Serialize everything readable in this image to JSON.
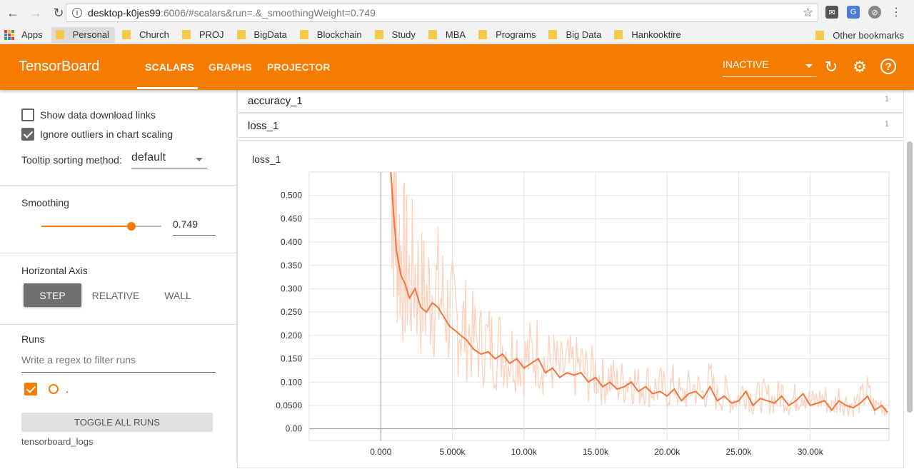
{
  "browser": {
    "url_host": "desktop-k0jes99",
    "url_rest": ":6006/#scalars&run=.&_smoothingWeight=0.749",
    "bookmarks": [
      "Apps",
      "Personal",
      "Church",
      "PROJ",
      "BigData",
      "Blockchain",
      "Study",
      "MBA",
      "Programs",
      "Big Data",
      "Hankooktire"
    ],
    "other_bookmarks": "Other bookmarks"
  },
  "header": {
    "title": "TensorBoard",
    "tabs": [
      "SCALARS",
      "GRAPHS",
      "PROJECTOR"
    ],
    "run_select": "INACTIVE",
    "color": "#f57c00"
  },
  "sidebar": {
    "show_download": "Show data download links",
    "ignore_outliers": "Ignore outliers in chart scaling",
    "tooltip_label": "Tooltip sorting method:",
    "tooltip_value": "default",
    "smoothing_label": "Smoothing",
    "smoothing_value": "0.749",
    "smoothing_fraction": 0.749,
    "haxis_label": "Horizontal Axis",
    "haxis_options": [
      "STEP",
      "RELATIVE",
      "WALL"
    ],
    "runs_label": "Runs",
    "runs_filter_placeholder": "Write a regex to filter runs",
    "run_name": ".",
    "toggle_all": "TOGGLE ALL RUNS",
    "logdir": "tensorboard_logs"
  },
  "categories": [
    {
      "name": "accuracy_1",
      "count": "1"
    },
    {
      "name": "loss_1",
      "count": "1"
    }
  ],
  "chart_data": {
    "type": "line",
    "title": "loss_1",
    "x_ticks": [
      "0.000",
      "5.000k",
      "10.00k",
      "15.00k",
      "20.00k",
      "25.00k",
      "30.00k"
    ],
    "y_ticks": [
      "0.00",
      "0.0500",
      "0.100",
      "0.150",
      "0.200",
      "0.250",
      "0.300",
      "0.350",
      "0.400",
      "0.450",
      "0.500"
    ],
    "xlim": [
      -5000,
      35500
    ],
    "ylim": [
      -0.025,
      0.55
    ],
    "smoothed_color": "#f4743b",
    "raw_color": "#fbd2bd",
    "series": [
      {
        "x": [
          700,
          900,
          1100,
          1400,
          1700,
          2000,
          2400,
          2800,
          3200,
          3600,
          4000,
          4400,
          4800,
          5200,
          5600,
          6000,
          6500,
          7000,
          7500,
          8000,
          8500,
          9000,
          9500,
          10000,
          10500,
          11000,
          11500,
          12000,
          12500,
          13000,
          13500,
          14000,
          14500,
          15000,
          15500,
          16000,
          16500,
          17000,
          17500,
          18000,
          18500,
          19000,
          19500,
          20000,
          20500,
          21000,
          21500,
          22000,
          22500,
          23000,
          23500,
          24000,
          24500,
          25000,
          25500,
          26000,
          26500,
          27000,
          27500,
          28000,
          28500,
          29000,
          29500,
          30000,
          30500,
          31000,
          31500,
          32000,
          32500,
          33000,
          33500,
          34000,
          34500,
          35000,
          35400
        ],
        "values": [
          0.55,
          0.46,
          0.38,
          0.33,
          0.31,
          0.28,
          0.3,
          0.26,
          0.25,
          0.27,
          0.26,
          0.24,
          0.22,
          0.21,
          0.2,
          0.19,
          0.17,
          0.16,
          0.165,
          0.15,
          0.16,
          0.14,
          0.15,
          0.13,
          0.14,
          0.15,
          0.12,
          0.13,
          0.11,
          0.12,
          0.115,
          0.12,
          0.1,
          0.11,
          0.09,
          0.1,
          0.085,
          0.09,
          0.1,
          0.08,
          0.09,
          0.075,
          0.08,
          0.07,
          0.085,
          0.06,
          0.075,
          0.08,
          0.065,
          0.09,
          0.06,
          0.07,
          0.055,
          0.06,
          0.08,
          0.05,
          0.065,
          0.06,
          0.055,
          0.07,
          0.05,
          0.06,
          0.075,
          0.05,
          0.055,
          0.06,
          0.04,
          0.06,
          0.05,
          0.045,
          0.055,
          0.07,
          0.04,
          0.05,
          0.035
        ]
      }
    ]
  }
}
